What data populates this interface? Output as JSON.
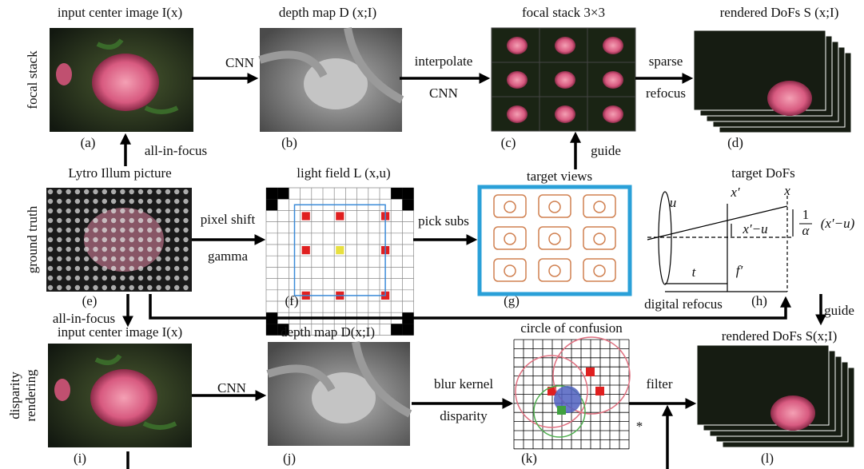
{
  "row_labels": [
    "focal stack",
    "ground truth",
    "disparity",
    "rendering"
  ],
  "panels": [
    {
      "title": "input center image I(x)",
      "caption": "(a)"
    },
    {
      "title": "depth map D (x;I)",
      "caption": "(b)"
    },
    {
      "title": "focal stack 3×3",
      "caption": "(c)"
    },
    {
      "title": "rendered DoFs S (x;I)",
      "caption": "(d)"
    },
    {
      "title": "Lytro Illum picture",
      "caption": "(e)"
    },
    {
      "title": "light field L (x,u)",
      "caption": "(f)"
    },
    {
      "title": "target views",
      "caption": "(g)"
    },
    {
      "title": "target DoFs",
      "caption": "(h)"
    },
    {
      "title": "input center image I(x)",
      "caption": "(i)"
    },
    {
      "title": "depth map D(x;I)",
      "caption": "(j)"
    },
    {
      "title": "circle of confusion",
      "caption": "(k)"
    },
    {
      "title": "rendered DoFs S(x;I)",
      "caption": "(l)"
    }
  ],
  "arrow_labels": [
    "CNN",
    "interpolate",
    "CNN",
    "sparse",
    "refocus",
    "all-in-focus",
    "guide",
    "pixel shift",
    "gamma",
    "pick subs",
    "digital refocus",
    "guide",
    "all-in-focus",
    "CNN",
    "blur kernel",
    "disparity",
    "filter"
  ],
  "lens_labels": [
    "u",
    "x′",
    "x",
    "x′−u",
    "1",
    "α",
    "(x′−u)",
    "t",
    "f′"
  ],
  "symbol": "*"
}
